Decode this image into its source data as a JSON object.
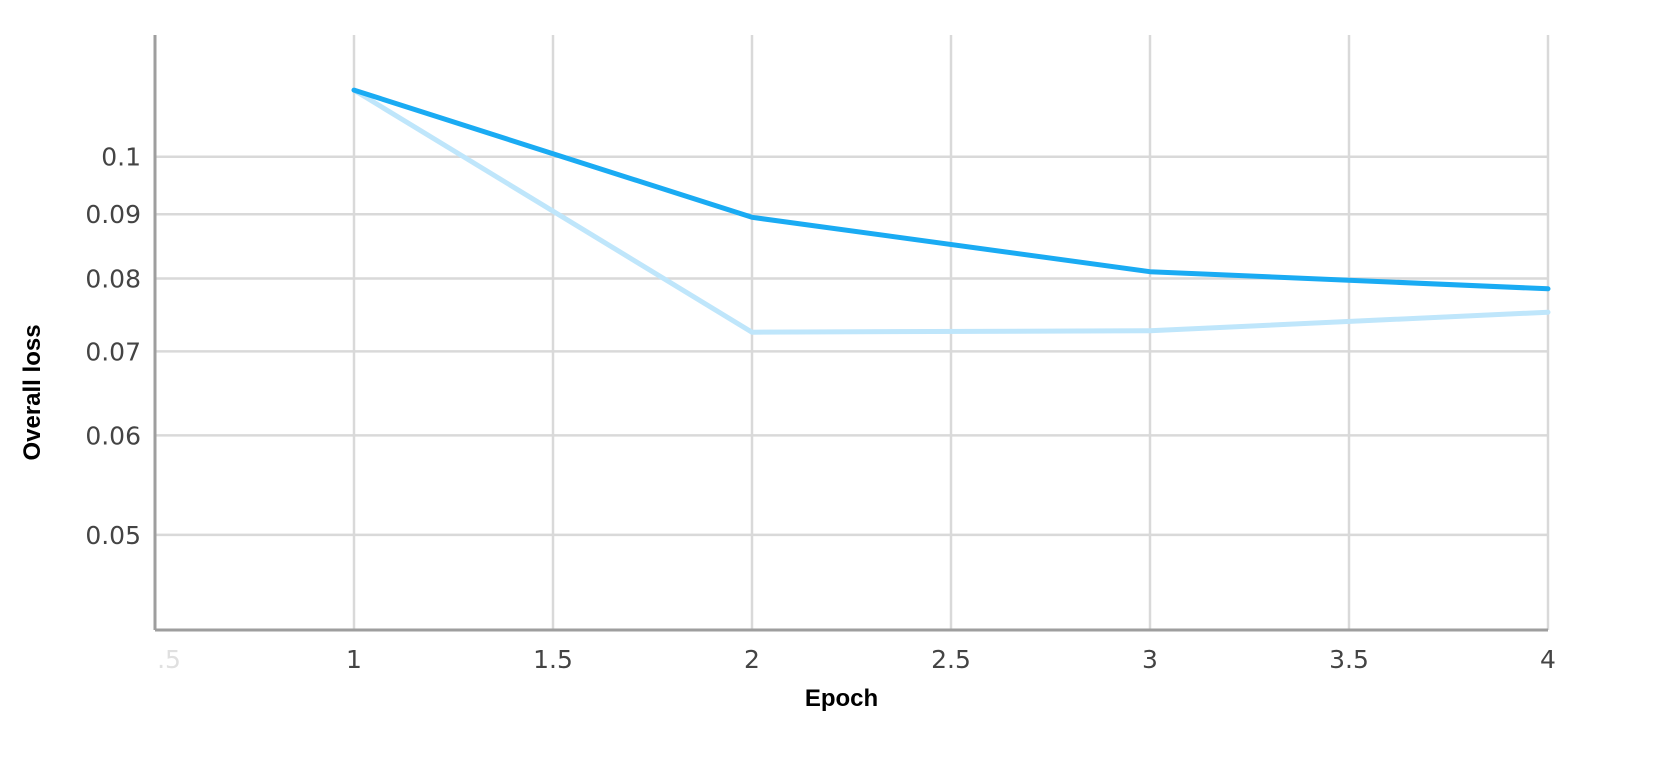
{
  "chart_data": {
    "type": "line",
    "xlabel": "Epoch",
    "ylabel": "Overall loss",
    "xlim": [
      0.5,
      4
    ],
    "ylim": [
      0.042,
      0.125
    ],
    "yscale": "log",
    "grid": true,
    "x_ticks": [
      {
        "value": 0.5,
        "label": ".5",
        "faint": true
      },
      {
        "value": 1,
        "label": "1"
      },
      {
        "value": 1.5,
        "label": "1.5"
      },
      {
        "value": 2,
        "label": "2"
      },
      {
        "value": 2.5,
        "label": "2.5"
      },
      {
        "value": 3,
        "label": "3"
      },
      {
        "value": 3.5,
        "label": "3.5"
      },
      {
        "value": 4,
        "label": "4"
      }
    ],
    "y_ticks": [
      {
        "value": 0.05,
        "label": "0.05"
      },
      {
        "value": 0.06,
        "label": "0.06"
      },
      {
        "value": 0.07,
        "label": "0.07"
      },
      {
        "value": 0.08,
        "label": "0.08"
      },
      {
        "value": 0.09,
        "label": "0.09"
      },
      {
        "value": 0.1,
        "label": "0.1"
      }
    ],
    "series": [
      {
        "color": "#1aabf3",
        "x": [
          1,
          2,
          3,
          4
        ],
        "values": [
          0.113,
          0.0895,
          0.081,
          0.0785
        ]
      },
      {
        "color": "#bfe6fb",
        "x": [
          1,
          2,
          3,
          4
        ],
        "values": [
          0.113,
          0.0725,
          0.0727,
          0.0752
        ]
      }
    ]
  }
}
